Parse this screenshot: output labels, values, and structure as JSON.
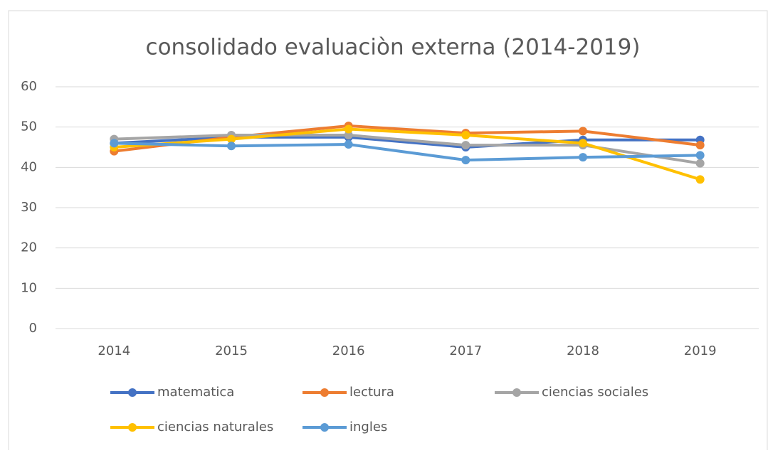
{
  "chart_data": {
    "type": "line",
    "title": "consolidado evaluaciòn externa (2014-2019)",
    "categories": [
      "2014",
      "2015",
      "2016",
      "2017",
      "2018",
      "2019"
    ],
    "series": [
      {
        "name": "matematica",
        "color": "#4472c4",
        "values": [
          46,
          47.5,
          47.5,
          45,
          46.8,
          46.8
        ]
      },
      {
        "name": "lectura",
        "color": "#ed7d31",
        "values": [
          44,
          47.5,
          50.3,
          48.5,
          49,
          45.5
        ]
      },
      {
        "name": "ciencias sociales",
        "color": "#a5a5a5",
        "values": [
          47,
          48,
          48,
          45.5,
          45.5,
          41
        ]
      },
      {
        "name": "ciencias naturales",
        "color": "#ffc000",
        "values": [
          45,
          47,
          49.5,
          48,
          46,
          37
        ]
      },
      {
        "name": "ingles",
        "color": "#5b9bd5",
        "values": [
          46,
          45.3,
          45.7,
          41.8,
          42.5,
          43
        ]
      }
    ],
    "ylim": [
      0,
      60
    ],
    "yticks": [
      0,
      10,
      20,
      30,
      40,
      50,
      60
    ],
    "grid": true,
    "legend": "bottom"
  }
}
